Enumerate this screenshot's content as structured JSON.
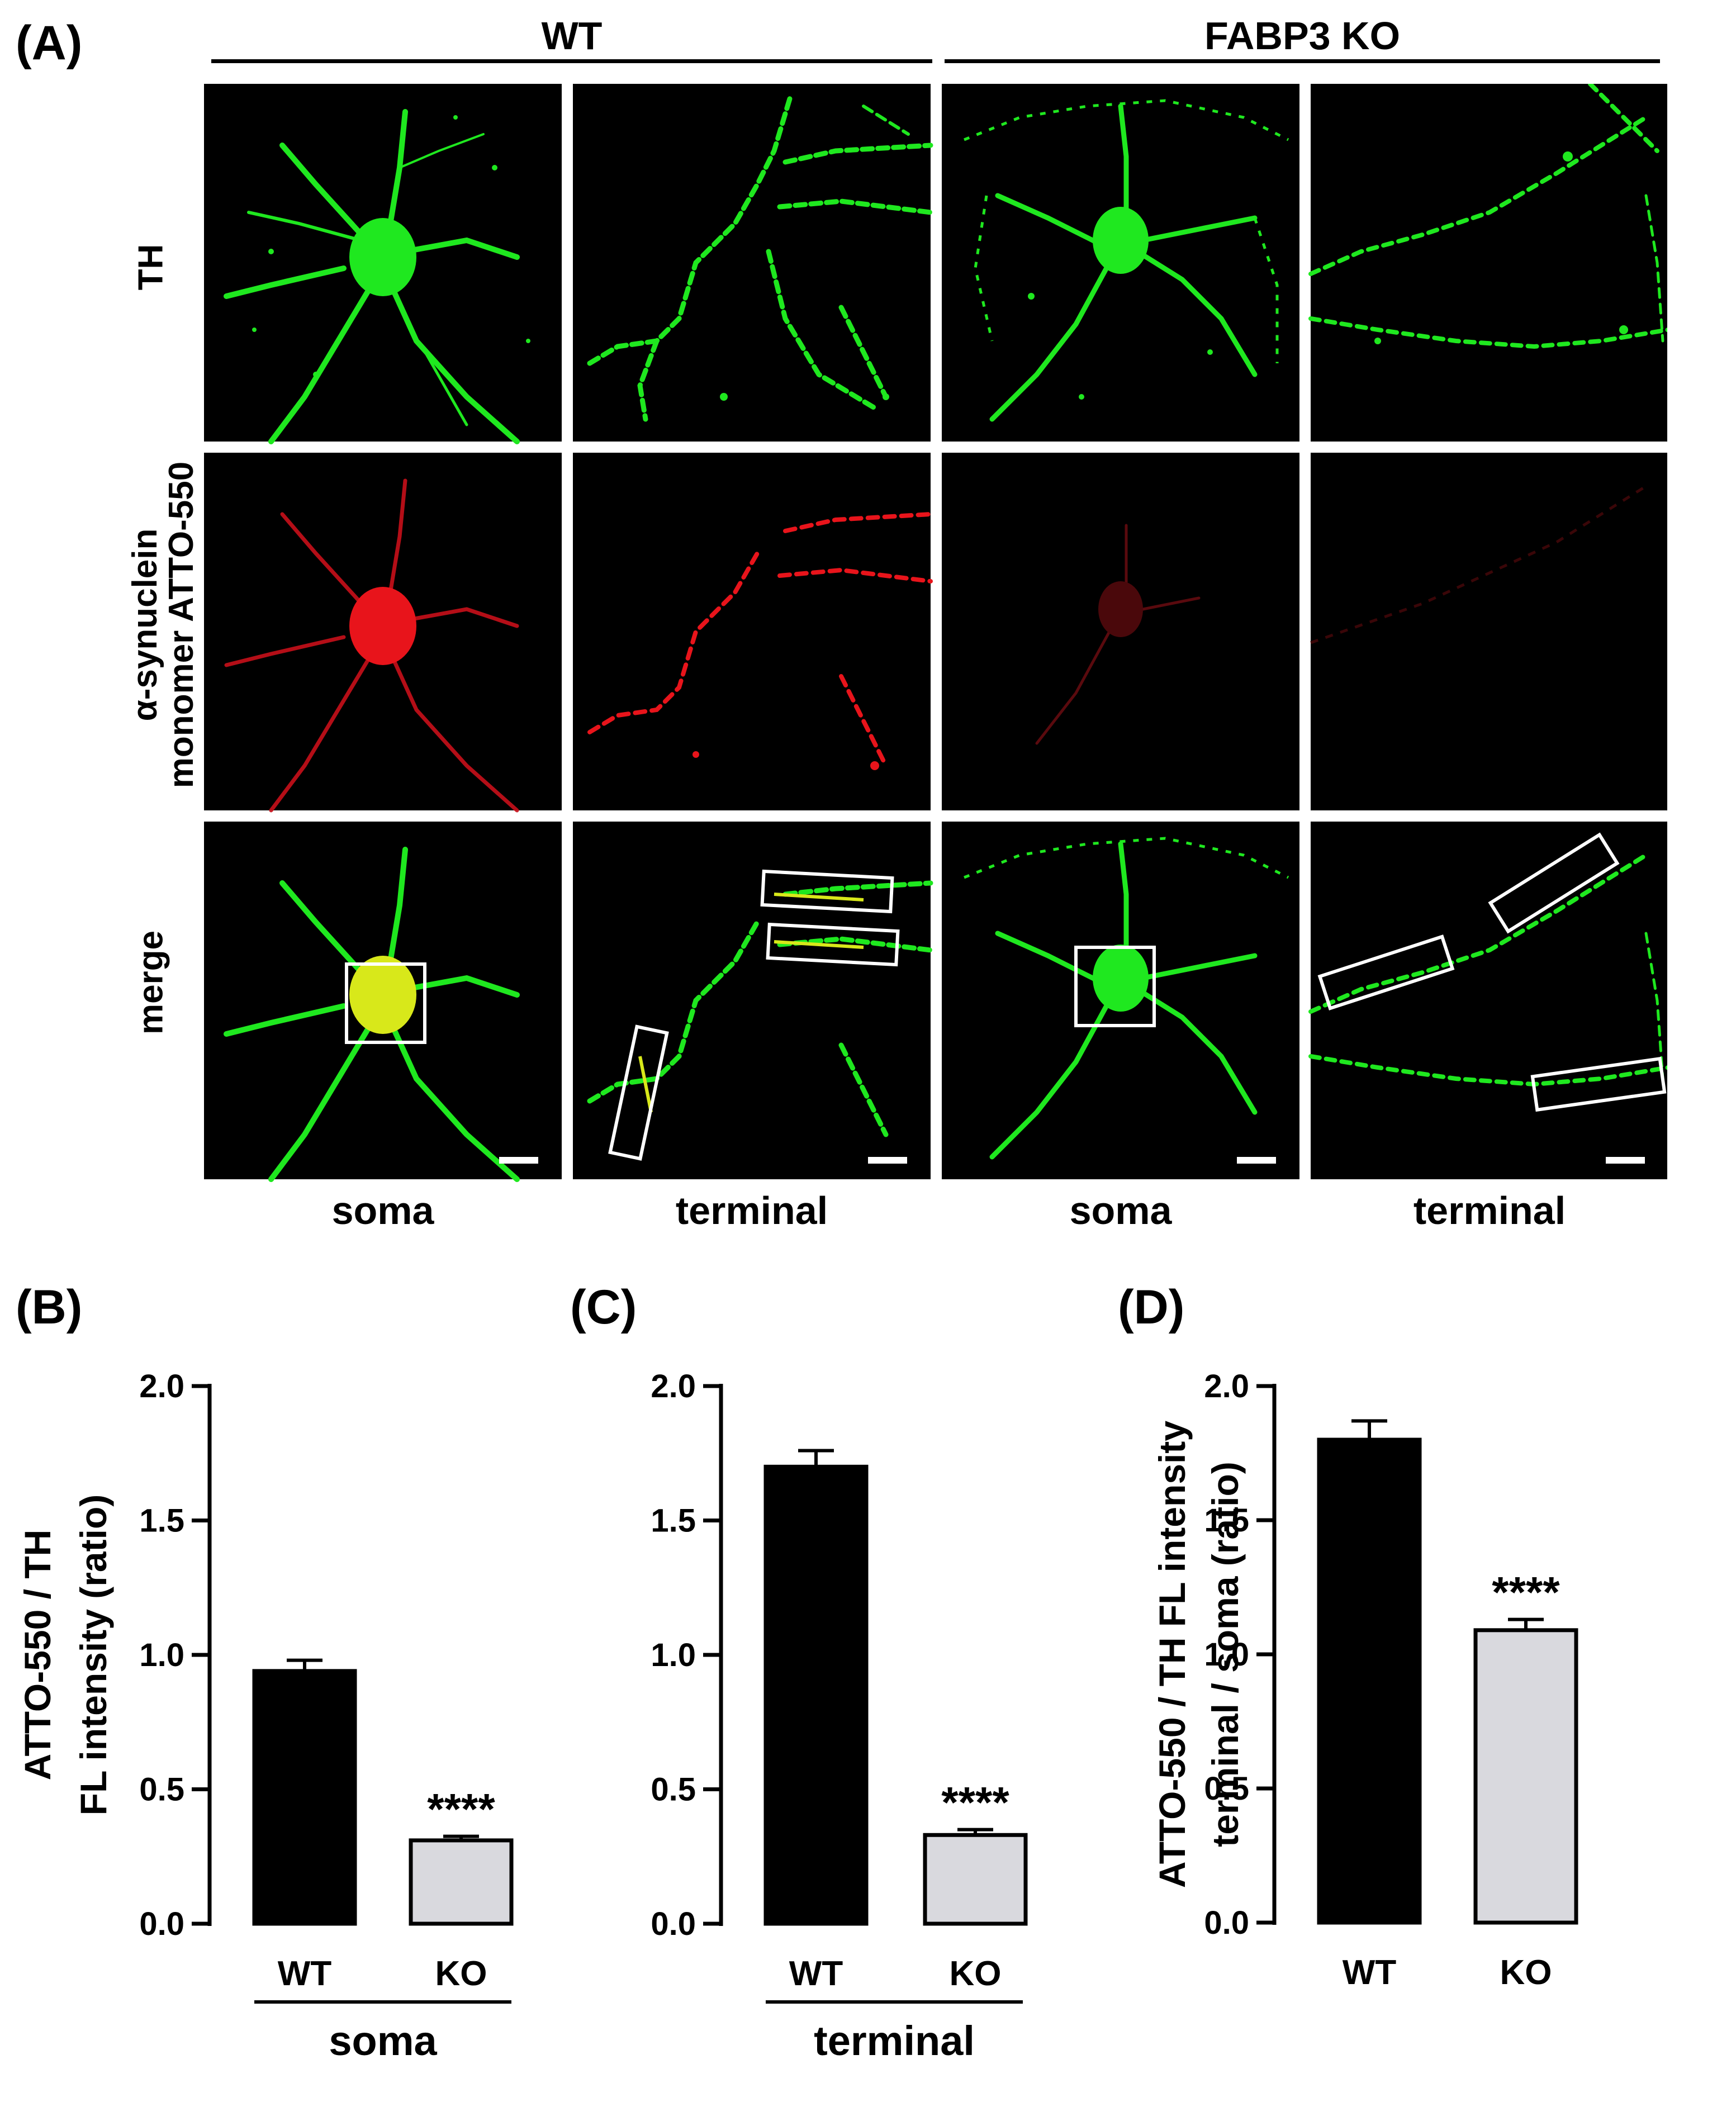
{
  "panel_a": {
    "letter": "(A)",
    "groups": [
      "WT",
      "FABP3 KO"
    ],
    "rows": [
      {
        "id": "th",
        "lines": [
          "TH"
        ]
      },
      {
        "id": "asyn",
        "lines": [
          "α-synuclein",
          "monomer ATTO-550"
        ]
      },
      {
        "id": "merge",
        "lines": [
          "merge"
        ]
      }
    ],
    "columns": [
      "soma",
      "terminal",
      "soma",
      "terminal"
    ]
  },
  "colors": {
    "th_green": "#1fe81f",
    "atto_red": "#e8141b",
    "merge_yellow": "#d8e81a",
    "wt_bar": "#000000",
    "ko_bar": "#d9d9de"
  },
  "chart_data": [
    {
      "letter": "(B)",
      "type": "bar",
      "categories": [
        "WT",
        "KO"
      ],
      "values": [
        0.94,
        0.31
      ],
      "errors": [
        0.04,
        0.015
      ],
      "ylabel_lines": [
        "ATTO-550 / TH",
        "FL intensity (ratio)"
      ],
      "yticks": [
        "0.0",
        "0.5",
        "1.0",
        "1.5",
        "2.0"
      ],
      "ylim": [
        0,
        2.0
      ],
      "group_label": "soma",
      "significance": [
        "",
        "****"
      ]
    },
    {
      "letter": "(C)",
      "type": "bar",
      "categories": [
        "WT",
        "KO"
      ],
      "values": [
        1.7,
        0.33
      ],
      "errors": [
        0.06,
        0.02
      ],
      "ylabel_lines": [],
      "yticks": [
        "0.0",
        "0.5",
        "1.0",
        "1.5",
        "2.0"
      ],
      "ylim": [
        0,
        2.0
      ],
      "group_label": "terminal",
      "significance": [
        "",
        "****"
      ]
    },
    {
      "letter": "(D)",
      "type": "bar",
      "categories": [
        "WT",
        "KO"
      ],
      "values": [
        1.8,
        1.09
      ],
      "errors": [
        0.07,
        0.04
      ],
      "ylabel_lines": [
        "ATTO-550 / TH FL intensity",
        "terminal / soma (ratio)"
      ],
      "yticks": [
        "0.0",
        "0.5",
        "1.0",
        "1.5",
        "2.0"
      ],
      "ylim": [
        0,
        2.0
      ],
      "group_label": "",
      "significance": [
        "",
        "****"
      ]
    }
  ]
}
